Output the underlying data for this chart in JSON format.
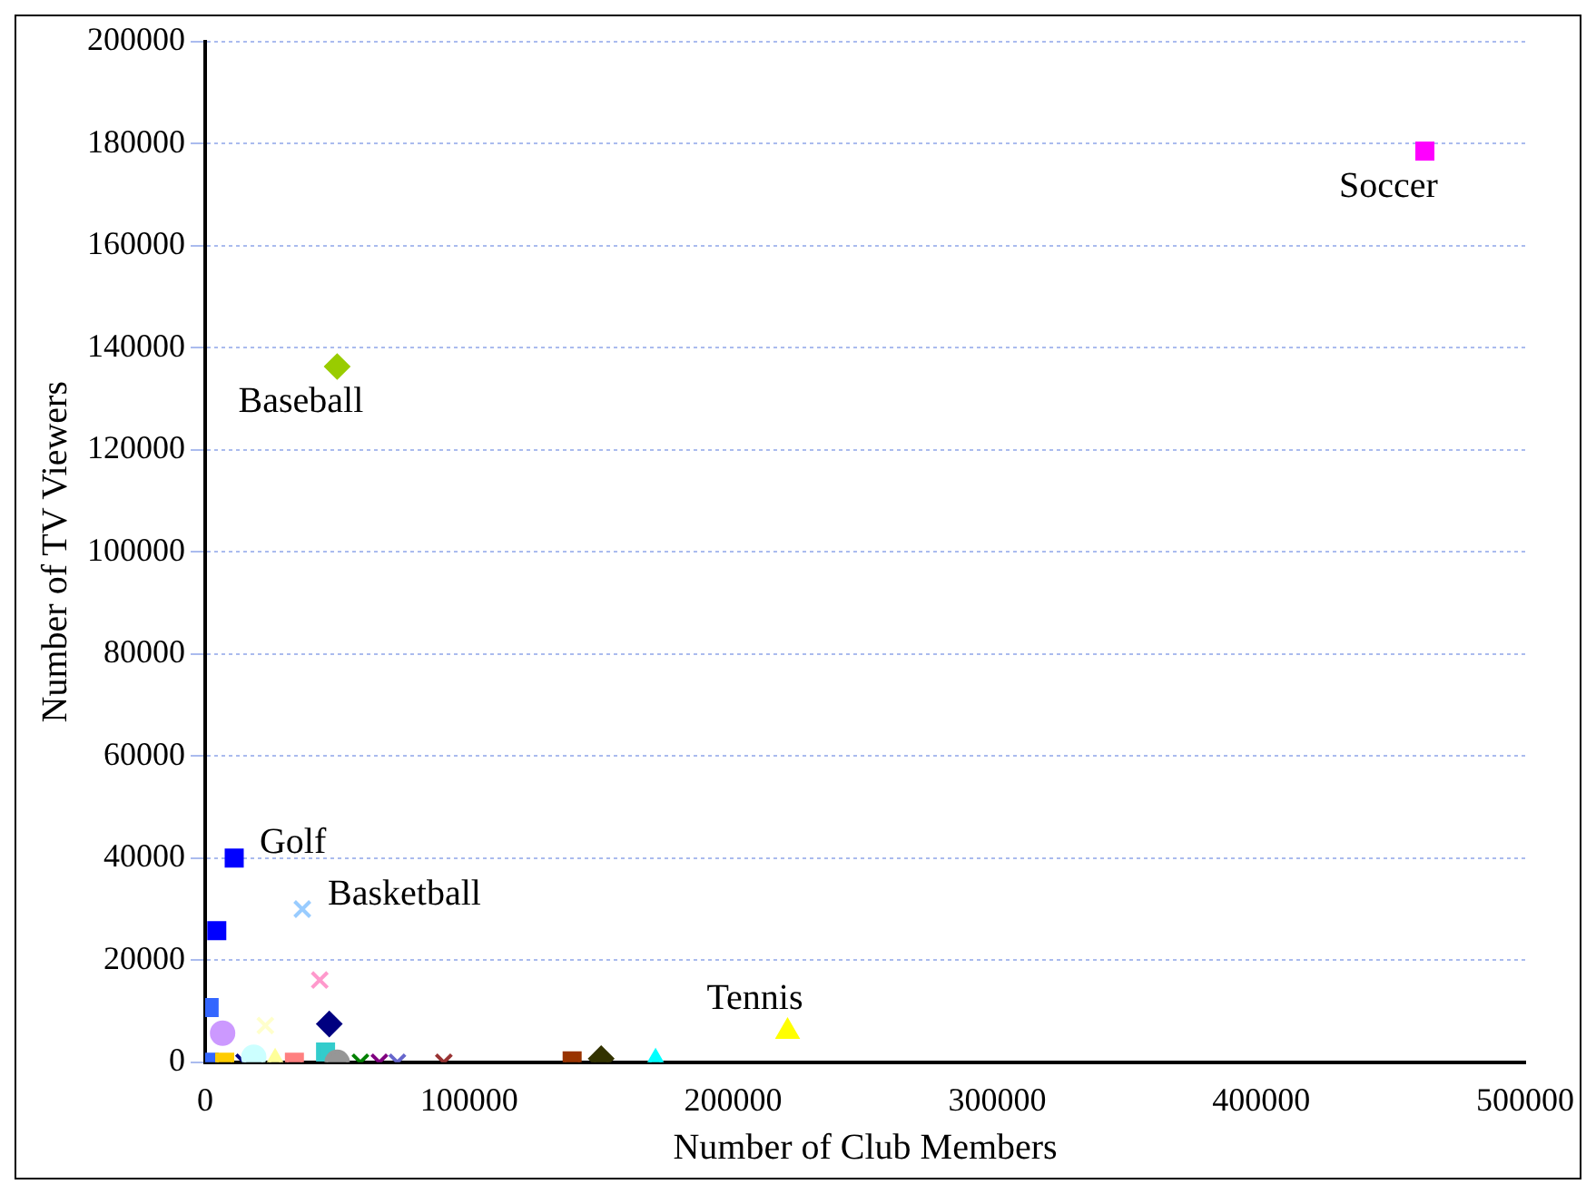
{
  "chart_data": {
    "type": "scatter",
    "xlabel": "Number of Club Members",
    "ylabel": "Number of TV Viewers",
    "xlim": [
      0,
      500000
    ],
    "xticks": [
      0,
      100000,
      200000,
      300000,
      400000,
      500000
    ],
    "ylim": [
      0,
      200000
    ],
    "yticks": [
      0,
      20000,
      40000,
      60000,
      80000,
      100000,
      120000,
      140000,
      160000,
      180000,
      200000
    ],
    "grid": "y",
    "legend": false,
    "series": [
      {
        "color": "#ff00ff",
        "marker": "square",
        "x": [
          462000
        ],
        "values": [
          178500
        ]
      },
      {
        "color": "#99cc00",
        "marker": "diamond",
        "x": [
          50000
        ],
        "values": [
          136300
        ]
      },
      {
        "color": "#0000ff",
        "marker": "square",
        "x": [
          11000
        ],
        "values": [
          40000
        ]
      },
      {
        "color": "#99ccff",
        "marker": "cross",
        "x": [
          36800
        ],
        "values": [
          30000
        ]
      },
      {
        "color": "#ffff00",
        "marker": "triangle",
        "x": [
          220600
        ],
        "values": [
          6000
        ]
      },
      {
        "color": "#0000ff",
        "marker": "square",
        "x": [
          4400
        ],
        "values": [
          25800
        ]
      },
      {
        "color": "#ff99cc",
        "marker": "cross",
        "x": [
          43400
        ],
        "values": [
          16100
        ]
      },
      {
        "color": "#000080",
        "marker": "diamond",
        "x": [
          47000
        ],
        "values": [
          7500
        ]
      },
      {
        "color": "#3366ff",
        "marker": "square",
        "x": [
          1500
        ],
        "values": [
          10700
        ]
      },
      {
        "color": "#cc99ff",
        "marker": "circle",
        "x": [
          6600
        ],
        "values": [
          5700
        ]
      },
      {
        "color": "#ffffcc",
        "marker": "cross",
        "x": [
          22800
        ],
        "values": [
          7200
        ]
      },
      {
        "color": "#ccffff",
        "marker": "circle",
        "x": [
          18400
        ],
        "values": [
          1000
        ]
      },
      {
        "color": "#ffff99",
        "marker": "triangle",
        "x": [
          26500
        ],
        "values": [
          0
        ]
      },
      {
        "color": "#969696",
        "marker": "circle",
        "x": [
          50000
        ],
        "values": [
          0
        ]
      },
      {
        "color": "#008000",
        "marker": "cross",
        "x": [
          58800
        ],
        "values": [
          0
        ]
      },
      {
        "color": "#800080",
        "marker": "cross",
        "x": [
          66000
        ],
        "values": [
          0
        ]
      },
      {
        "color": "#6666cc",
        "marker": "cross",
        "x": [
          72800
        ],
        "values": [
          0
        ]
      },
      {
        "color": "#993333",
        "marker": "cross",
        "x": [
          90400
        ],
        "values": [
          0
        ]
      },
      {
        "color": "#993300",
        "marker": "square",
        "x": [
          139000
        ],
        "values": [
          300
        ]
      },
      {
        "color": "#333300",
        "marker": "diamond",
        "x": [
          150000
        ],
        "values": [
          700
        ]
      },
      {
        "color": "#00ffff",
        "marker": "triangle",
        "x": [
          170600
        ],
        "values": [
          0
        ]
      },
      {
        "color": "#ff8080",
        "marker": "square",
        "x": [
          33800
        ],
        "values": [
          0
        ]
      },
      {
        "color": "#33cccc",
        "marker": "square",
        "x": [
          45600
        ],
        "values": [
          2000
        ]
      },
      {
        "color": "#ffcc00",
        "marker": "square",
        "x": [
          7400
        ],
        "values": [
          0
        ]
      },
      {
        "color": "#3366ff",
        "marker": "square",
        "x": [
          1500
        ],
        "values": [
          0
        ]
      },
      {
        "color": "#000080",
        "marker": "cross",
        "x": [
          14700
        ],
        "values": [
          0
        ]
      }
    ],
    "annotations": [
      {
        "text": "Soccer",
        "x": 462000,
        "y": 178500
      },
      {
        "text": "Baseball",
        "x": 50000,
        "y": 136300
      },
      {
        "text": "Golf",
        "x": 11000,
        "y": 40000
      },
      {
        "text": "Basketball",
        "x": 36800,
        "y": 30000
      },
      {
        "text": "Tennis",
        "x": 220600,
        "y": 6000
      }
    ]
  }
}
